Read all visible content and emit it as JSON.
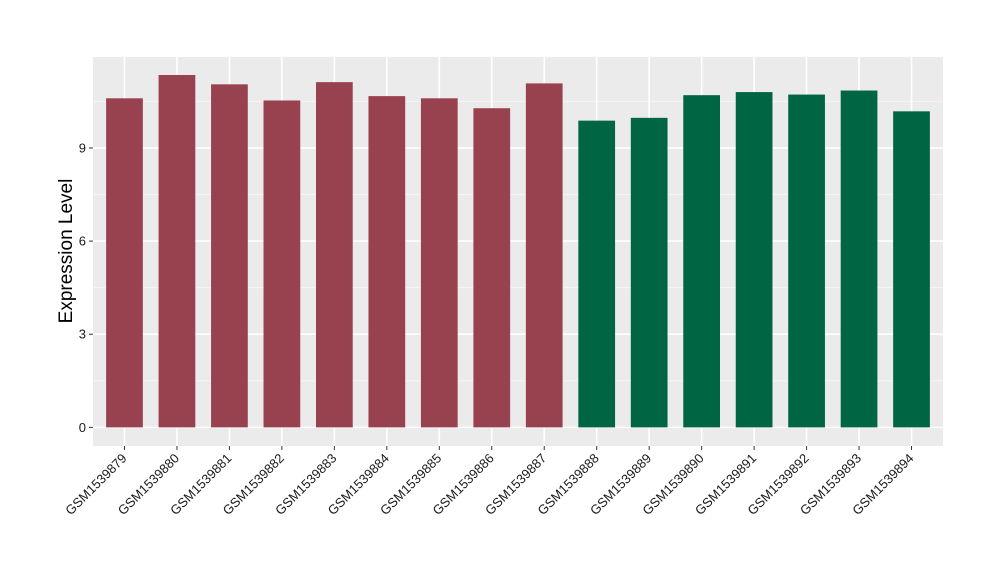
{
  "chart_data": {
    "type": "bar",
    "title": "",
    "xlabel": "",
    "ylabel": "Expression Level",
    "ylim": [
      -0.6,
      11.93
    ],
    "yticks": [
      0,
      3,
      6,
      9
    ],
    "y_tick_labels": [
      "0",
      "3",
      "6",
      "9"
    ],
    "grid": true,
    "legend": "none",
    "categories": [
      "GSM1539879",
      "GSM1539880",
      "GSM1539881",
      "GSM1539882",
      "GSM1539883",
      "GSM1539884",
      "GSM1539885",
      "GSM1539886",
      "GSM1539887",
      "GSM1539888",
      "GSM1539889",
      "GSM1539890",
      "GSM1539891",
      "GSM1539892",
      "GSM1539893",
      "GSM1539894"
    ],
    "values": [
      10.6,
      11.35,
      11.05,
      10.53,
      11.12,
      10.67,
      10.6,
      10.28,
      11.08,
      9.88,
      9.97,
      10.7,
      10.8,
      10.72,
      10.85,
      10.18
    ],
    "bar_colors": [
      "#99424f",
      "#99424f",
      "#99424f",
      "#99424f",
      "#99424f",
      "#99424f",
      "#99424f",
      "#99424f",
      "#99424f",
      "#006543",
      "#006543",
      "#006543",
      "#006543",
      "#006543",
      "#006543",
      "#006543"
    ],
    "colors": {
      "panel": "#ebebeb",
      "grid_major": "#ffffff",
      "grid_minor": "#f5f5f5",
      "group_1": "#99424f",
      "group_2": "#006543"
    }
  }
}
